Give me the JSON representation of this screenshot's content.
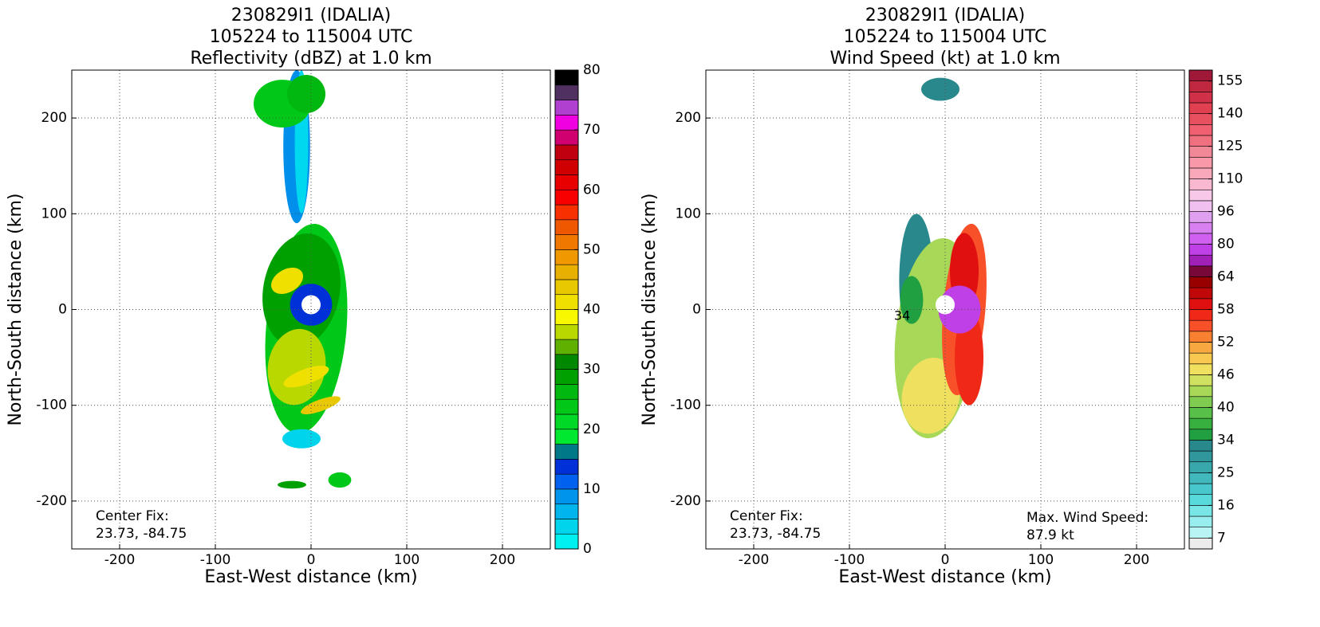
{
  "chart_data": [
    {
      "type": "radar",
      "title": [
        "230829I1 (IDALIA)",
        "105224 to 115004 UTC",
        "Reflectivity (dBZ) at 1.0 km"
      ],
      "xlabel": "East-West distance (km)",
      "ylabel": "North-South distance (km)",
      "xlim": [
        -250,
        250
      ],
      "ylim": [
        -250,
        250
      ],
      "xticks": [
        -200,
        -100,
        0,
        100,
        200
      ],
      "yticks": [
        -200,
        -100,
        0,
        100,
        200
      ],
      "grid": true,
      "colorbar": {
        "lim": [
          0,
          80
        ],
        "ticks": [
          0,
          10,
          20,
          30,
          40,
          50,
          60,
          70,
          80
        ],
        "colors": [
          "#00f0f0",
          "#00d4ec",
          "#00b4ec",
          "#0094ec",
          "#0060f0",
          "#0030d8",
          "#007888",
          "#00e830",
          "#00d828",
          "#00c818",
          "#00b810",
          "#00a000",
          "#008800",
          "#60b000",
          "#b8d800",
          "#f8f800",
          "#f0e000",
          "#e8c800",
          "#e8b000",
          "#f09800",
          "#f07800",
          "#f05800",
          "#f83000",
          "#f80000",
          "#e80000",
          "#d00000",
          "#c00010",
          "#d00070",
          "#f000e0",
          "#b040d0",
          "#503060",
          "#000000"
        ]
      },
      "center_fix": {
        "label": "Center Fix:",
        "value": "23.73, -84.75"
      }
    },
    {
      "type": "radar",
      "title": [
        "230829I1 (IDALIA)",
        "105224 to 115004 UTC",
        "Wind Speed (kt) at 1.0 km"
      ],
      "xlabel": "East-West distance (km)",
      "ylabel": "North-South distance (km)",
      "xlim": [
        -250,
        250
      ],
      "ylim": [
        -250,
        250
      ],
      "xticks": [
        -200,
        -100,
        0,
        100,
        200
      ],
      "yticks": [
        -200,
        -100,
        0,
        100,
        200
      ],
      "grid": true,
      "colorbar": {
        "ticks": [
          7,
          16,
          25,
          34,
          40,
          46,
          52,
          58,
          64,
          80,
          96,
          110,
          125,
          140,
          155
        ],
        "colors": [
          "#ececec",
          "#b8f4f4",
          "#98eeee",
          "#78e6e6",
          "#58dada",
          "#48c8cc",
          "#40b8bc",
          "#38a8ac",
          "#30989c",
          "#28888c",
          "#20a040",
          "#38b040",
          "#58c048",
          "#80cc50",
          "#a8d858",
          "#d0e060",
          "#f0e060",
          "#f8c850",
          "#f8a840",
          "#f88030",
          "#f85028",
          "#f02818",
          "#e01010",
          "#c00808",
          "#980000",
          "#780838",
          "#a020b8",
          "#c040e8",
          "#d060f0",
          "#d880f0",
          "#e0a0f0",
          "#f0c0f0",
          "#f8c8e8",
          "#f8b8d0",
          "#f8a8b8",
          "#f898a8",
          "#f08898",
          "#f07080",
          "#f06070",
          "#e85060",
          "#e04050",
          "#d03048",
          "#c02840",
          "#a01838"
        ]
      },
      "contour_label": {
        "text": "34",
        "x": -45,
        "y": -7
      },
      "center_fix": {
        "label": "Center Fix:",
        "value": "23.73, -84.75"
      },
      "max_wind": {
        "label": "Max. Wind Speed:",
        "value": "87.9 kt"
      }
    }
  ]
}
